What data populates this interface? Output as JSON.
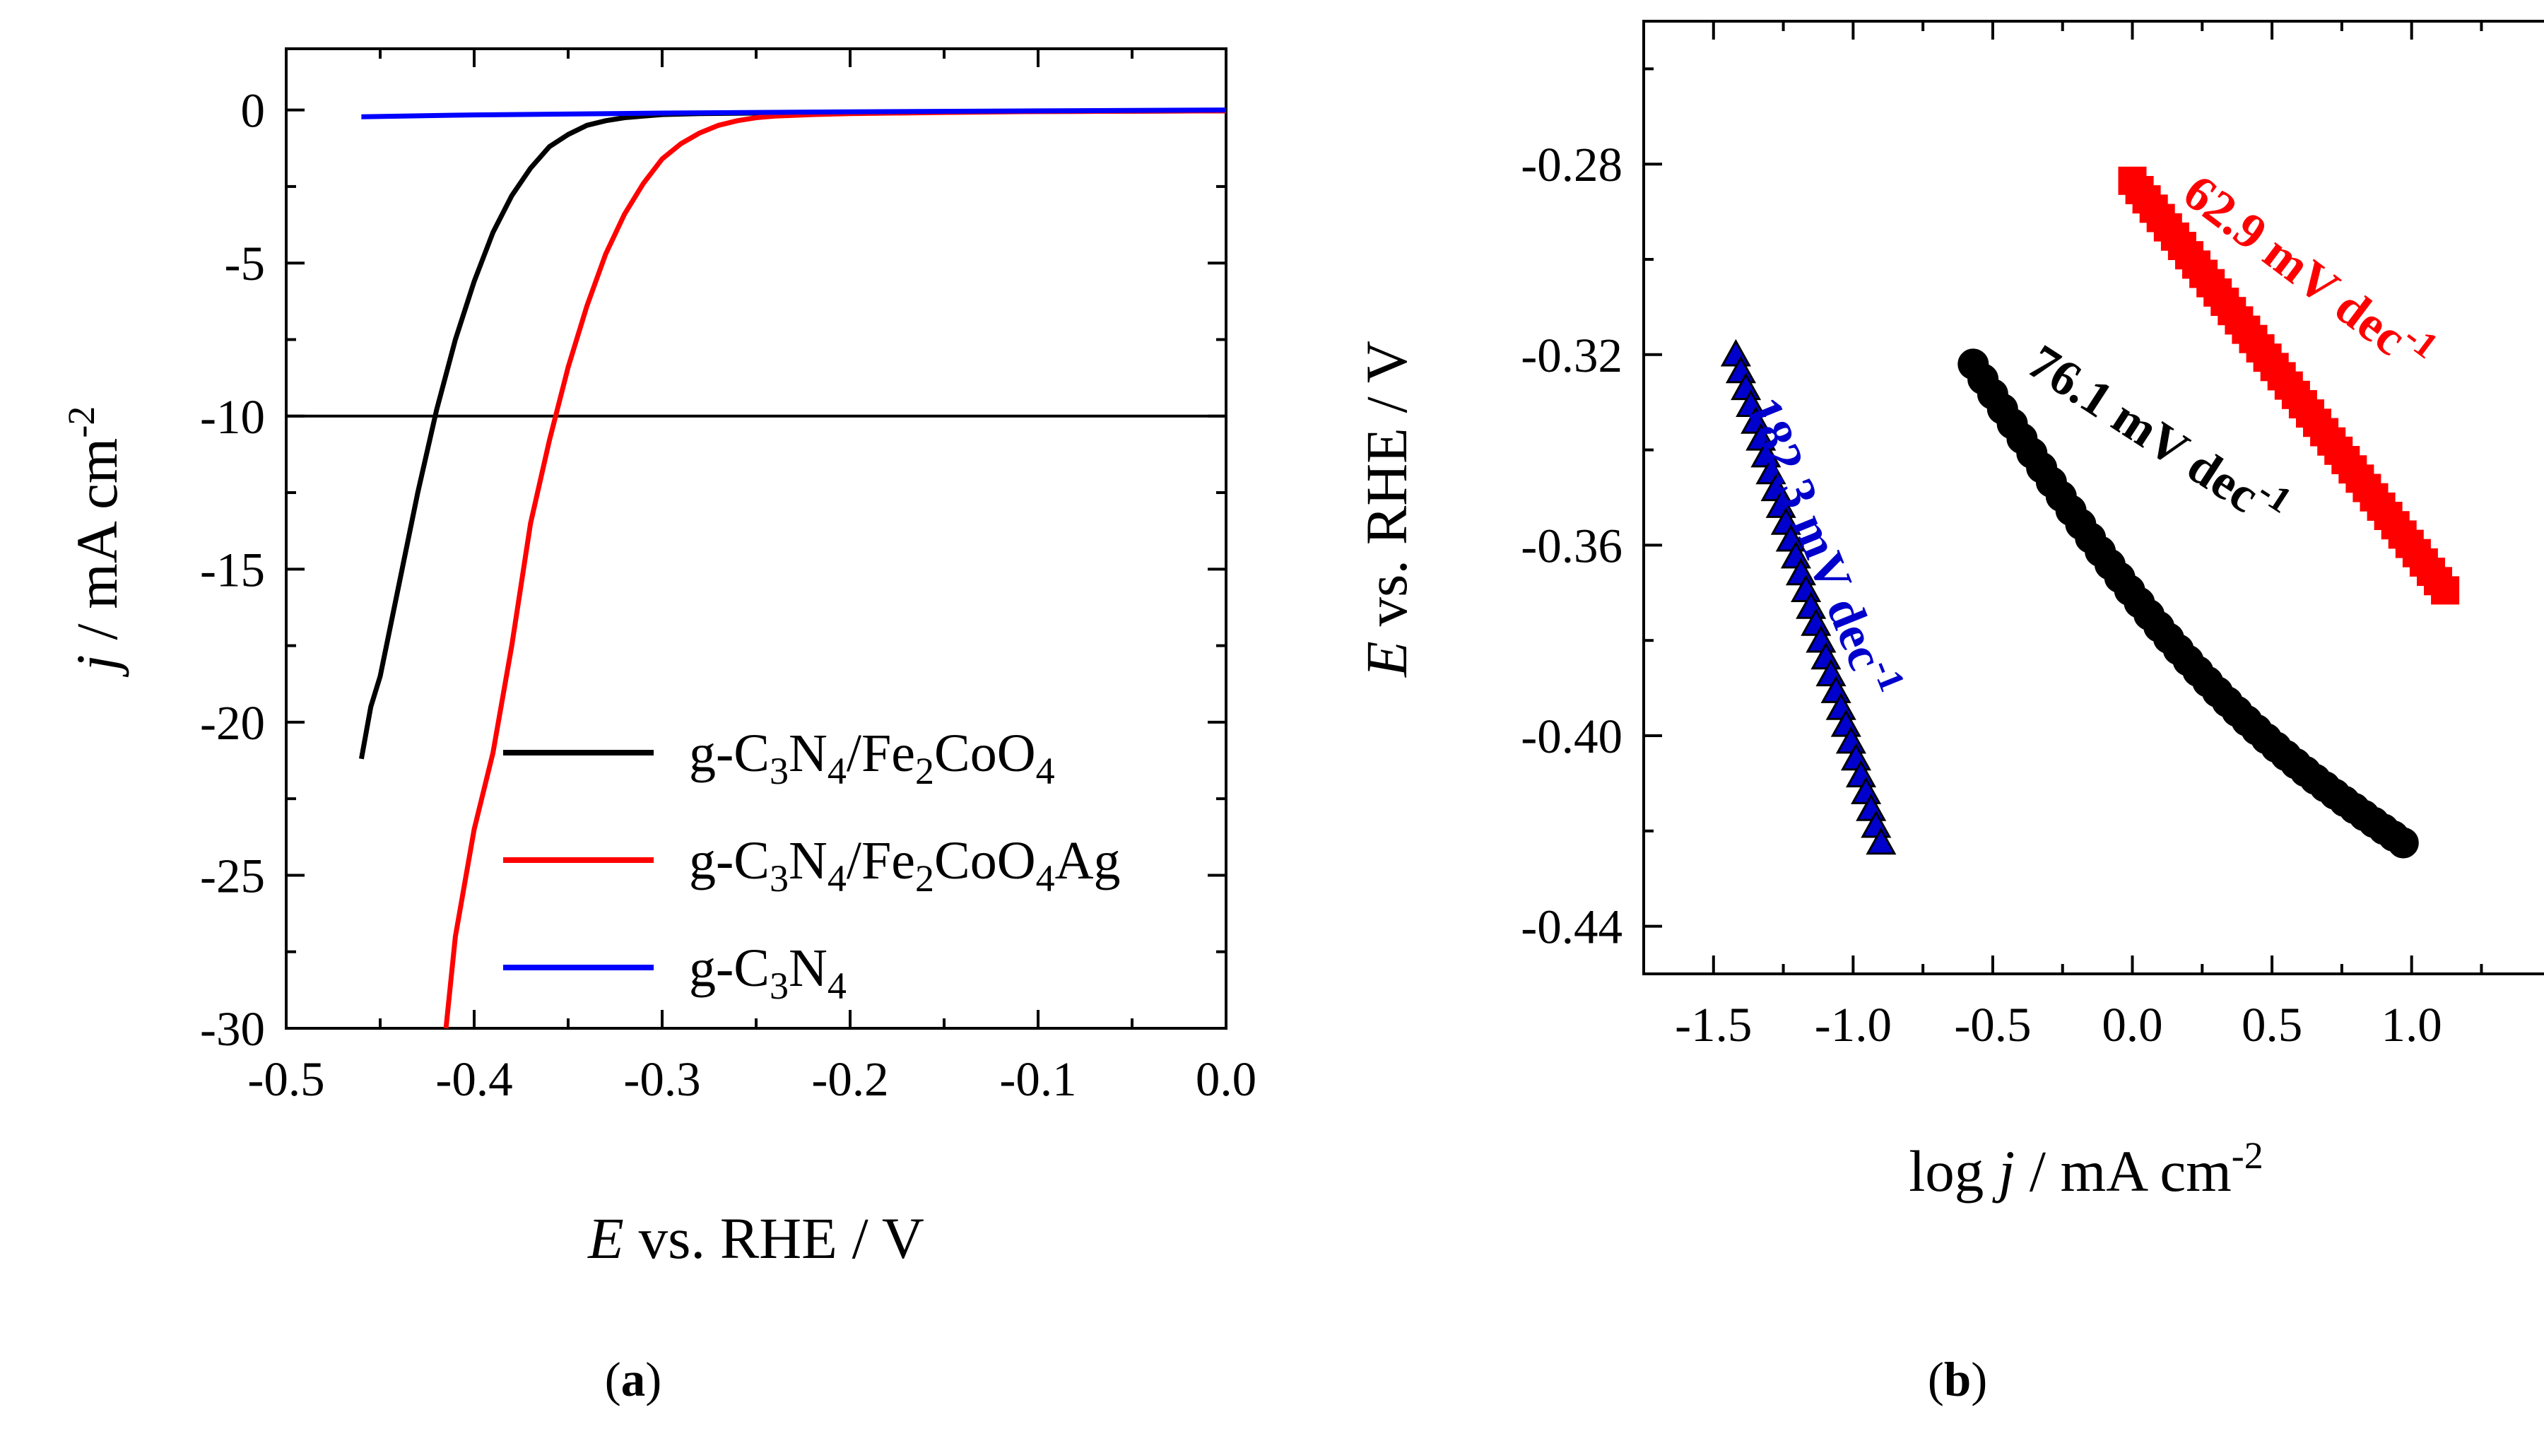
{
  "chart_data": [
    {
      "type": "line",
      "panel_label": "a",
      "xlabel": {
        "italic": "E",
        "rest": " vs. RHE / V"
      },
      "ylabel": {
        "italic": "j",
        "rest": " / mA cm",
        "sup": "-2"
      },
      "xlim": [
        -0.5,
        0.0
      ],
      "ylim": [
        -30,
        2
      ],
      "xticks": [
        "-0.5",
        "-0.4",
        "-0.3",
        "-0.2",
        "-0.1",
        "0.0"
      ],
      "yticks": [
        "0",
        "-5",
        "-10",
        "-15",
        "-20",
        "-25",
        "-30"
      ],
      "reference_line_y": -10,
      "legend_position": "bottom-right",
      "series": [
        {
          "name": "g-C3N4/Fe2CoO4",
          "label_parts": [
            [
              "g-C",
              ""
            ],
            [
              "3",
              "sub"
            ],
            [
              "N",
              ""
            ],
            [
              "4",
              "sub"
            ],
            [
              "/Fe",
              ""
            ],
            [
              "2",
              "sub"
            ],
            [
              "CoO",
              ""
            ],
            [
              "4",
              "sub"
            ]
          ],
          "color": "#000000",
          "x": [
            -0.46,
            -0.455,
            -0.45,
            -0.44,
            -0.43,
            -0.42,
            -0.41,
            -0.4,
            -0.39,
            -0.38,
            -0.37,
            -0.36,
            -0.35,
            -0.34,
            -0.33,
            -0.32,
            -0.31,
            -0.3,
            -0.28,
            -0.25,
            -0.2,
            -0.1,
            0.0
          ],
          "y": [
            -21.2,
            -19.5,
            -18.5,
            -15.5,
            -12.5,
            -9.8,
            -7.5,
            -5.6,
            -4.0,
            -2.8,
            -1.9,
            -1.2,
            -0.8,
            -0.5,
            -0.35,
            -0.25,
            -0.2,
            -0.15,
            -0.12,
            -0.1,
            -0.08,
            -0.05,
            -0.03
          ]
        },
        {
          "name": "g-C3N4/Fe2CoO4Ag",
          "label_parts": [
            [
              "g-C",
              ""
            ],
            [
              "3",
              "sub"
            ],
            [
              "N",
              ""
            ],
            [
              "4",
              "sub"
            ],
            [
              "/Fe",
              ""
            ],
            [
              "2",
              "sub"
            ],
            [
              "CoO",
              ""
            ],
            [
              "4",
              "sub"
            ],
            [
              "Ag",
              ""
            ]
          ],
          "color": "#ff0000",
          "x": [
            -0.415,
            -0.41,
            -0.4,
            -0.39,
            -0.38,
            -0.37,
            -0.36,
            -0.35,
            -0.34,
            -0.33,
            -0.32,
            -0.31,
            -0.3,
            -0.29,
            -0.28,
            -0.27,
            -0.26,
            -0.25,
            -0.24,
            -0.22,
            -0.2,
            -0.15,
            -0.1,
            0.0
          ],
          "y": [
            -30.0,
            -27.0,
            -23.5,
            -21.0,
            -17.5,
            -13.5,
            -10.8,
            -8.4,
            -6.4,
            -4.7,
            -3.4,
            -2.4,
            -1.6,
            -1.1,
            -0.75,
            -0.5,
            -0.35,
            -0.25,
            -0.2,
            -0.15,
            -0.12,
            -0.08,
            -0.05,
            -0.03
          ]
        },
        {
          "name": "g-C3N4",
          "label_parts": [
            [
              "g-C",
              ""
            ],
            [
              "3",
              "sub"
            ],
            [
              "N",
              ""
            ],
            [
              "4",
              "sub"
            ]
          ],
          "color": "#0000ff",
          "x": [
            -0.46,
            -0.4,
            -0.3,
            -0.2,
            -0.1,
            0.0
          ],
          "y": [
            -0.22,
            -0.16,
            -0.1,
            -0.06,
            -0.03,
            0.0
          ]
        }
      ]
    },
    {
      "type": "scatter",
      "panel_label": "b",
      "xlabel": {
        "rest": "log ",
        "italic": "j",
        "rest2": " / mA cm",
        "sup": "-2"
      },
      "ylabel": {
        "italic": "E",
        "rest": " vs. RHE / V"
      },
      "xlim": [
        -1.75,
        1.55
      ],
      "ylim": [
        -0.45,
        -0.25
      ],
      "xticks": [
        "-1.5",
        "-1.0",
        "-0.5",
        "0.0",
        "0.5",
        "1.0"
      ],
      "yticks": [
        "-0.28",
        "-0.32",
        "-0.36",
        "-0.40",
        "-0.44"
      ],
      "series": [
        {
          "name": "g-C3N4",
          "marker": "triangle",
          "color": "#0000cc",
          "x_range": [
            -1.42,
            -0.9
          ],
          "y_range": [
            -0.32,
            -0.4225
          ],
          "count": 30,
          "tafel_slope": "182.3 mV dec",
          "tafel_slope_sup": "-1"
        },
        {
          "name": "g-C3N4/Fe2CoO4",
          "marker": "circle",
          "color": "#000000",
          "x_range": [
            -0.57,
            0.97
          ],
          "y_range": [
            -0.322,
            -0.4225
          ],
          "curvature": 0.012,
          "count": 45,
          "tafel_slope": "76.1 mV dec",
          "tafel_slope_sup": "-1"
        },
        {
          "name": "g-C3N4/Fe2CoO4Ag",
          "marker": "square",
          "color": "#ff0000",
          "x_range": [
            0.0,
            1.12
          ],
          "y_range": [
            -0.2835,
            -0.3695
          ],
          "count": 45,
          "tafel_slope": "62.9 mV dec",
          "tafel_slope_sup": "-1"
        }
      ]
    }
  ]
}
